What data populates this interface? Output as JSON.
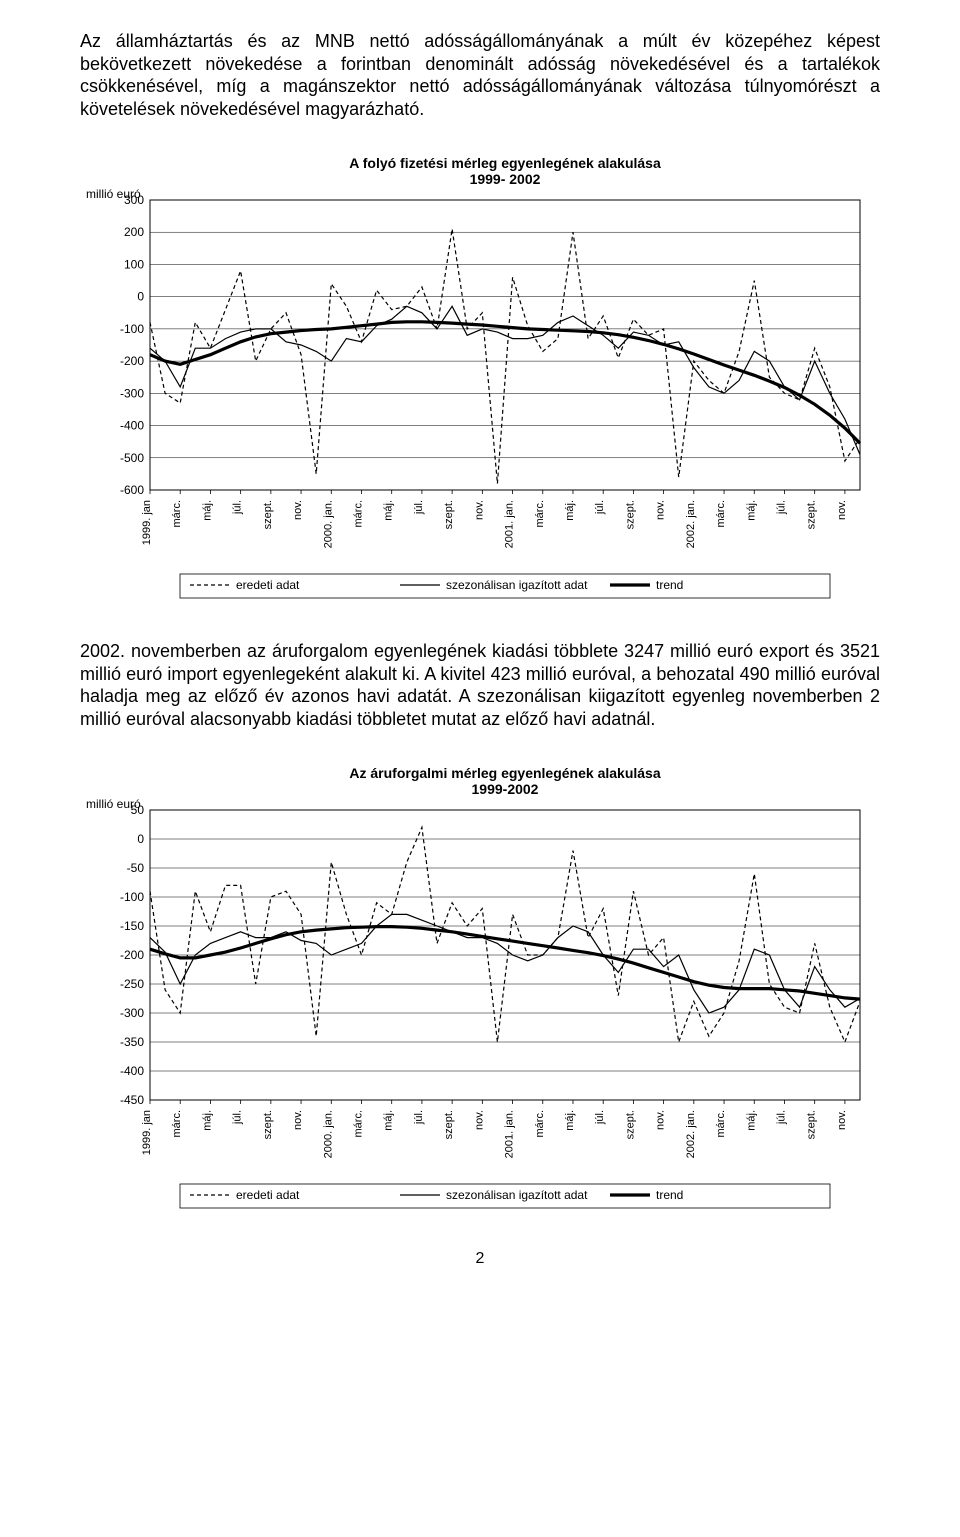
{
  "paragraph1": "Az államháztartás és az MNB nettó adósságállományának a múlt év közepéhez képest bekövetkezett növekedése a forintban denominált adósság növekedésével és a tartalékok csökkenésével, míg a magánszektor nettó adósságállományának változása túlnyomórészt a követelések növekedésével magyarázható.",
  "paragraph2": "2002. novemberben az áruforgalom egyenlegének kiadási többlete 3247 millió euró export és 3521 millió euró import egyenlegeként alakult ki. A kivitel 423 millió euróval, a behozatal 490 millió euróval haladja meg az előző év azonos havi adatát. A szezonálisan kiigazított egyenleg novemberben 2 millió euróval alacsonyabb kiadási többletet mutat az előző havi adatnál.",
  "pageNumber": "2",
  "chart1": {
    "type": "line",
    "title": "A folyó fizetési mérleg egyenlegének alakulása\n1999- 2002",
    "title_fontsize": 14,
    "title_bold": true,
    "ylabel": "millió euró",
    "ylabel_fontsize": 12,
    "ylim": [
      -600,
      300
    ],
    "ytick_step": 100,
    "yticks": [
      300,
      200,
      100,
      0,
      -100,
      -200,
      -300,
      -400,
      -500,
      -600
    ],
    "xlabels": [
      "1999. jan",
      "márc.",
      "máj.",
      "júl.",
      "szept.",
      "nov.",
      "2000. jan.",
      "márc.",
      "máj.",
      "júl.",
      "szept.",
      "nov.",
      "2001. jan.",
      "márc.",
      "máj.",
      "júl.",
      "szept.",
      "nov.",
      "2002. jan.",
      "márc.",
      "máj.",
      "júl.",
      "szept.",
      "nov."
    ],
    "x_count": 48,
    "legend": [
      "eredeti adat",
      "szezonálisan igazított adat",
      "trend"
    ],
    "legend_styles": [
      {
        "type": "dashed",
        "width": 1.2,
        "color": "#000000"
      },
      {
        "type": "solid",
        "width": 1.2,
        "color": "#000000"
      },
      {
        "type": "solid",
        "width": 3.2,
        "color": "#000000"
      }
    ],
    "grid_color": "#000000",
    "grid_width": 0.5,
    "border_color": "#000000",
    "background_color": "#ffffff",
    "series": {
      "eredeti": [
        -80,
        -300,
        -330,
        -80,
        -160,
        -40,
        80,
        -200,
        -100,
        -50,
        -180,
        -550,
        40,
        -30,
        -140,
        20,
        -40,
        -30,
        30,
        -100,
        210,
        -100,
        -50,
        -580,
        60,
        -90,
        -170,
        -130,
        200,
        -130,
        -60,
        -190,
        -70,
        -120,
        -100,
        -560,
        -200,
        -260,
        -300,
        -170,
        50,
        -250,
        -300,
        -320,
        -160,
        -280,
        -510,
        -440
      ],
      "szezonalis": [
        -160,
        -200,
        -280,
        -160,
        -160,
        -130,
        -110,
        -100,
        -100,
        -140,
        -150,
        -170,
        -200,
        -130,
        -140,
        -90,
        -70,
        -30,
        -50,
        -100,
        -30,
        -120,
        -100,
        -110,
        -130,
        -130,
        -120,
        -80,
        -60,
        -90,
        -120,
        -160,
        -110,
        -120,
        -150,
        -140,
        -220,
        -280,
        -300,
        -260,
        -170,
        -200,
        -280,
        -320,
        -200,
        -300,
        -380,
        -490
      ],
      "trend": [
        -180,
        -200,
        -210,
        -195,
        -180,
        -160,
        -140,
        -125,
        -115,
        -110,
        -105,
        -102,
        -100,
        -95,
        -90,
        -85,
        -80,
        -78,
        -78,
        -80,
        -82,
        -85,
        -88,
        -92,
        -96,
        -100,
        -102,
        -104,
        -106,
        -108,
        -112,
        -118,
        -126,
        -136,
        -148,
        -162,
        -178,
        -195,
        -212,
        -228,
        -244,
        -262,
        -282,
        -306,
        -334,
        -368,
        -408,
        -455
      ]
    }
  },
  "chart2": {
    "type": "line",
    "title": "Az áruforgalmi mérleg egyenlegének alakulása\n1999-2002",
    "title_fontsize": 14,
    "title_bold": true,
    "ylabel": "millió euró",
    "ylabel_fontsize": 12,
    "ylim": [
      -450,
      50
    ],
    "ytick_step": 50,
    "yticks": [
      50,
      0,
      -50,
      -100,
      -150,
      -200,
      -250,
      -300,
      -350,
      -400,
      -450
    ],
    "xlabels": [
      "1999. jan",
      "márc.",
      "máj.",
      "júl.",
      "szept.",
      "nov.",
      "2000. jan.",
      "márc.",
      "máj.",
      "júl.",
      "szept.",
      "nov.",
      "2001. jan.",
      "márc.",
      "máj.",
      "júl.",
      "szept.",
      "nov.",
      "2002. jan.",
      "márc.",
      "máj.",
      "júl.",
      "szept.",
      "nov."
    ],
    "x_count": 48,
    "legend": [
      "eredeti adat",
      "szezonálisan igazított adat",
      "trend"
    ],
    "legend_styles": [
      {
        "type": "dashed",
        "width": 1.2,
        "color": "#000000"
      },
      {
        "type": "solid",
        "width": 1.2,
        "color": "#000000"
      },
      {
        "type": "solid",
        "width": 3.2,
        "color": "#000000"
      }
    ],
    "grid_color": "#000000",
    "grid_width": 0.5,
    "border_color": "#000000",
    "background_color": "#ffffff",
    "series": {
      "eredeti": [
        -90,
        -260,
        -300,
        -90,
        -160,
        -80,
        -80,
        -250,
        -100,
        -90,
        -130,
        -340,
        -40,
        -130,
        -200,
        -110,
        -130,
        -40,
        20,
        -180,
        -110,
        -150,
        -120,
        -350,
        -130,
        -200,
        -200,
        -170,
        -20,
        -170,
        -120,
        -270,
        -90,
        -200,
        -170,
        -350,
        -280,
        -340,
        -300,
        -210,
        -60,
        -250,
        -290,
        -300,
        -180,
        -290,
        -350,
        -280
      ],
      "szezonalis": [
        -170,
        -195,
        -250,
        -200,
        -180,
        -170,
        -160,
        -170,
        -170,
        -160,
        -175,
        -180,
        -200,
        -190,
        -180,
        -150,
        -130,
        -130,
        -140,
        -150,
        -160,
        -170,
        -170,
        -180,
        -200,
        -210,
        -200,
        -170,
        -150,
        -160,
        -200,
        -230,
        -190,
        -190,
        -220,
        -200,
        -260,
        -300,
        -290,
        -260,
        -190,
        -200,
        -260,
        -290,
        -220,
        -260,
        -290,
        -275
      ],
      "trend": [
        -190,
        -198,
        -205,
        -205,
        -200,
        -195,
        -188,
        -180,
        -172,
        -165,
        -160,
        -157,
        -155,
        -153,
        -152,
        -151,
        -151,
        -152,
        -154,
        -157,
        -160,
        -164,
        -168,
        -172,
        -176,
        -180,
        -184,
        -188,
        -192,
        -196,
        -201,
        -207,
        -214,
        -222,
        -230,
        -238,
        -246,
        -252,
        -256,
        -258,
        -258,
        -258,
        -260,
        -262,
        -266,
        -270,
        -274,
        -276
      ]
    }
  }
}
